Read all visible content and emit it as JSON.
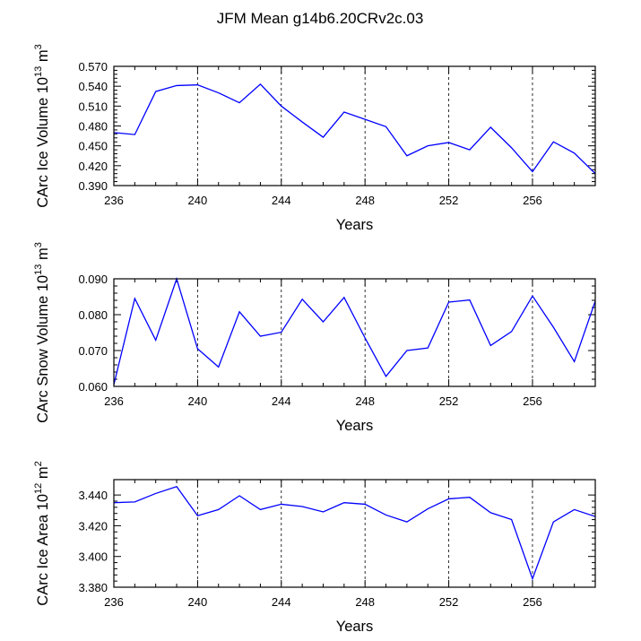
{
  "title": "JFM Mean g14b6.20CRv2c.03",
  "line_color": "#0000ff",
  "chart_data": [
    {
      "type": "line",
      "ylabel": "CArc Ice Volume 10^13 m^3",
      "ylabel_parts": [
        "CArc Ice Volume 10",
        "13",
        " m",
        "3"
      ],
      "xlabel": "Years",
      "xlim": [
        236,
        259
      ],
      "ylim": [
        0.39,
        0.57
      ],
      "xticks": [
        236,
        240,
        244,
        248,
        252,
        256
      ],
      "xtick_labels": [
        "236",
        "240",
        "244",
        "248",
        "252",
        "256"
      ],
      "yticks": [
        0.39,
        0.42,
        0.45,
        0.48,
        0.51,
        0.54,
        0.57
      ],
      "ytick_labels": [
        "0.390",
        "0.420",
        "0.450",
        "0.480",
        "0.510",
        "0.540",
        "0.570"
      ],
      "x": [
        236,
        237,
        238,
        239,
        240,
        241,
        242,
        243,
        244,
        245,
        246,
        247,
        248,
        249,
        250,
        251,
        252,
        253,
        254,
        255,
        256,
        257,
        258,
        259
      ],
      "y": [
        0.47,
        0.467,
        0.532,
        0.541,
        0.542,
        0.53,
        0.515,
        0.543,
        0.51,
        0.486,
        0.463,
        0.501,
        0.49,
        0.479,
        0.435,
        0.45,
        0.455,
        0.444,
        0.478,
        0.447,
        0.411,
        0.456,
        0.439,
        0.408
      ],
      "dashed_gridlines_x": [
        240,
        244,
        248,
        252,
        256
      ]
    },
    {
      "type": "line",
      "ylabel": "CArc Snow Volume 10^13 m^3",
      "ylabel_parts": [
        "CArc Snow Volume 10",
        "13",
        " m",
        "3"
      ],
      "xlabel": "Years",
      "xlim": [
        236,
        259
      ],
      "ylim": [
        0.06,
        0.09
      ],
      "xticks": [
        236,
        240,
        244,
        248,
        252,
        256
      ],
      "xtick_labels": [
        "236",
        "240",
        "244",
        "248",
        "252",
        "256"
      ],
      "yticks": [
        0.06,
        0.07,
        0.08,
        0.09
      ],
      "ytick_labels": [
        "0.060",
        "0.070",
        "0.080",
        "0.090"
      ],
      "x": [
        236,
        237,
        238,
        239,
        240,
        241,
        242,
        243,
        244,
        245,
        246,
        247,
        248,
        249,
        250,
        251,
        252,
        253,
        254,
        255,
        256,
        257,
        258,
        259
      ],
      "y": [
        0.0605,
        0.0845,
        0.0729,
        0.09,
        0.0705,
        0.0654,
        0.0808,
        0.074,
        0.0751,
        0.0843,
        0.078,
        0.0848,
        0.0735,
        0.0628,
        0.07,
        0.0707,
        0.0835,
        0.0841,
        0.0714,
        0.0753,
        0.0852,
        0.0765,
        0.0669,
        0.0838
      ],
      "dashed_gridlines_x": [
        240,
        244,
        248,
        252,
        256
      ]
    },
    {
      "type": "line",
      "ylabel": "CArc Ice Area 10^12 m^2",
      "ylabel_parts": [
        "CArc Ice Area 10",
        "12",
        " m",
        "2"
      ],
      "xlabel": "Years",
      "xlim": [
        236,
        259
      ],
      "ylim": [
        3.38,
        3.45
      ],
      "xticks": [
        236,
        240,
        244,
        248,
        252,
        256
      ],
      "xtick_labels": [
        "236",
        "240",
        "244",
        "248",
        "252",
        "256"
      ],
      "yticks": [
        3.38,
        3.4,
        3.42,
        3.44
      ],
      "ytick_labels": [
        "3.380",
        "3.400",
        "3.420",
        "3.440"
      ],
      "x": [
        236,
        237,
        238,
        239,
        240,
        241,
        242,
        243,
        244,
        245,
        246,
        247,
        248,
        249,
        250,
        251,
        252,
        253,
        254,
        255,
        256,
        257,
        258,
        259
      ],
      "y": [
        3.435,
        3.4355,
        3.441,
        3.4455,
        3.4265,
        3.4305,
        3.4395,
        3.4305,
        3.434,
        3.4325,
        3.429,
        3.435,
        3.434,
        3.427,
        3.4225,
        3.431,
        3.4375,
        3.4385,
        3.4285,
        3.424,
        3.3855,
        3.4225,
        3.4305,
        3.426
      ],
      "dashed_gridlines_x": [
        240,
        244,
        248,
        252,
        256
      ]
    }
  ]
}
